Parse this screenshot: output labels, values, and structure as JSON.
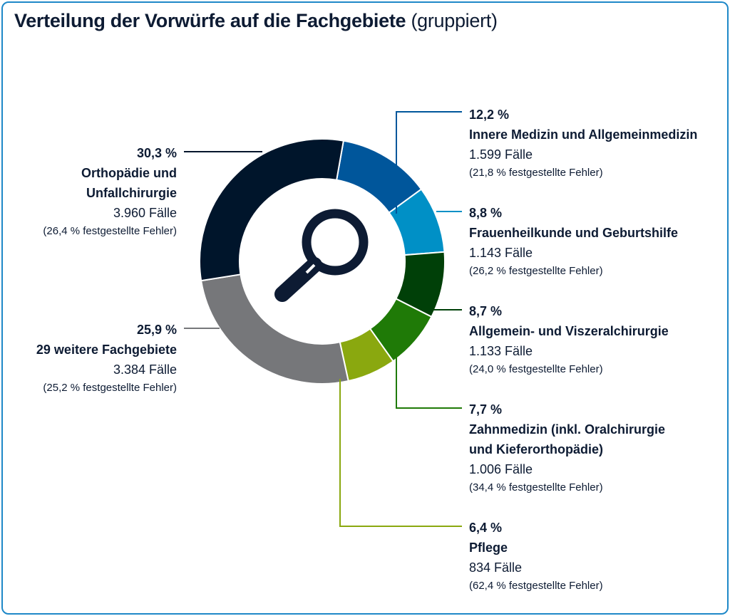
{
  "title": "Verteilung der Vorwürfe auf die Fachgebiete",
  "subtitle": "(gruppiert)",
  "colors": {
    "frame": "#1e88c8",
    "text": "#0d1b33"
  },
  "center_icon": "magnifier-icon",
  "chart_data": {
    "type": "pie",
    "variant": "donut",
    "title": "Verteilung der Vorwürfe auf die Fachgebiete (gruppiert)",
    "slices": [
      {
        "name": "Innere Medizin und Allgemeinmedizin",
        "pct": 12.2,
        "pct_label": "12,2 %",
        "cases": "1.599 Fälle",
        "errors": "(21,8 % festgestellte Fehler)",
        "color": "#00569b"
      },
      {
        "name": "Frauenheilkunde und Geburtshilfe",
        "pct": 8.8,
        "pct_label": "8,8 %",
        "cases": "1.143 Fälle",
        "errors": "(26,2 % festgestellte Fehler)",
        "color": "#0090c6"
      },
      {
        "name": "Allgemein- und Viszeralchirurgie",
        "pct": 8.7,
        "pct_label": "8,7 %",
        "cases": "1.133 Fälle",
        "errors": "(24,0 % festgestellte Fehler)",
        "color": "#004008"
      },
      {
        "name": "Zahnmedizin (inkl. Oralchirurgie",
        "name2": "und Kieferorthopädie)",
        "pct": 7.7,
        "pct_label": "7,7 %",
        "cases": "1.006 Fälle",
        "errors": "(34,4 % festgestellte Fehler)",
        "color": "#1f7a07"
      },
      {
        "name": "Pflege",
        "pct": 6.4,
        "pct_label": "6,4 %",
        "cases": "834 Fälle",
        "errors": "(62,4 % festgestellte Fehler)",
        "color": "#8aa80f"
      },
      {
        "name": "29 weitere Fachgebiete",
        "pct": 25.9,
        "pct_label": "25,9 %",
        "cases": "3.384 Fälle",
        "errors": "(25,2 % festgestellte Fehler)",
        "color": "#76777a"
      },
      {
        "name": "Orthopädie und",
        "name2": "Unfallchirurgie",
        "pct": 30.3,
        "pct_label": "30,3 %",
        "cases": "3.960 Fälle",
        "errors": "(26,4 % festgestellte Fehler)",
        "color": "#00152b"
      }
    ]
  }
}
